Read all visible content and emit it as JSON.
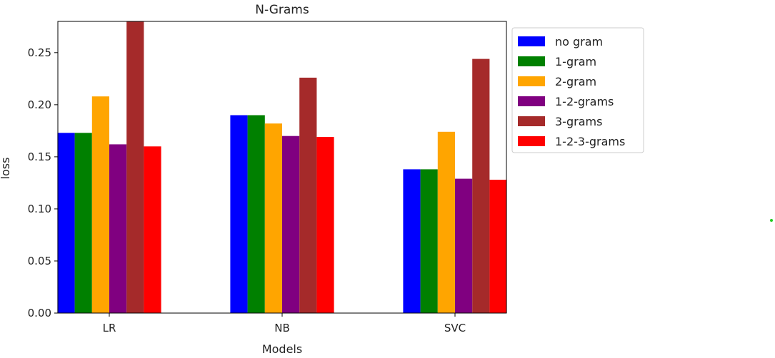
{
  "chart_data": {
    "type": "bar",
    "title": "N-Grams",
    "xlabel": "Models",
    "ylabel": "loss",
    "categories": [
      "LR",
      "NB",
      "SVC"
    ],
    "ylim": [
      0,
      0.28
    ],
    "yticks": [
      "0.00",
      "0.05",
      "0.10",
      "0.15",
      "0.20",
      "0.25"
    ],
    "legend_position": "outside-right-top",
    "grid": false,
    "series": [
      {
        "name": "no gram",
        "color": "#0000ff",
        "values": [
          0.173,
          0.19,
          0.138
        ]
      },
      {
        "name": "1-gram",
        "color": "#008000",
        "values": [
          0.173,
          0.19,
          0.138
        ]
      },
      {
        "name": "2-gram",
        "color": "#ffa500",
        "values": [
          0.208,
          0.182,
          0.174
        ]
      },
      {
        "name": "1-2-grams",
        "color": "#800080",
        "values": [
          0.162,
          0.17,
          0.129
        ]
      },
      {
        "name": "3-grams",
        "color": "#a52a2a",
        "values": [
          0.28,
          0.226,
          0.244
        ]
      },
      {
        "name": "1-2-3-grams",
        "color": "#ff0000",
        "values": [
          0.16,
          0.169,
          0.128
        ]
      }
    ]
  }
}
